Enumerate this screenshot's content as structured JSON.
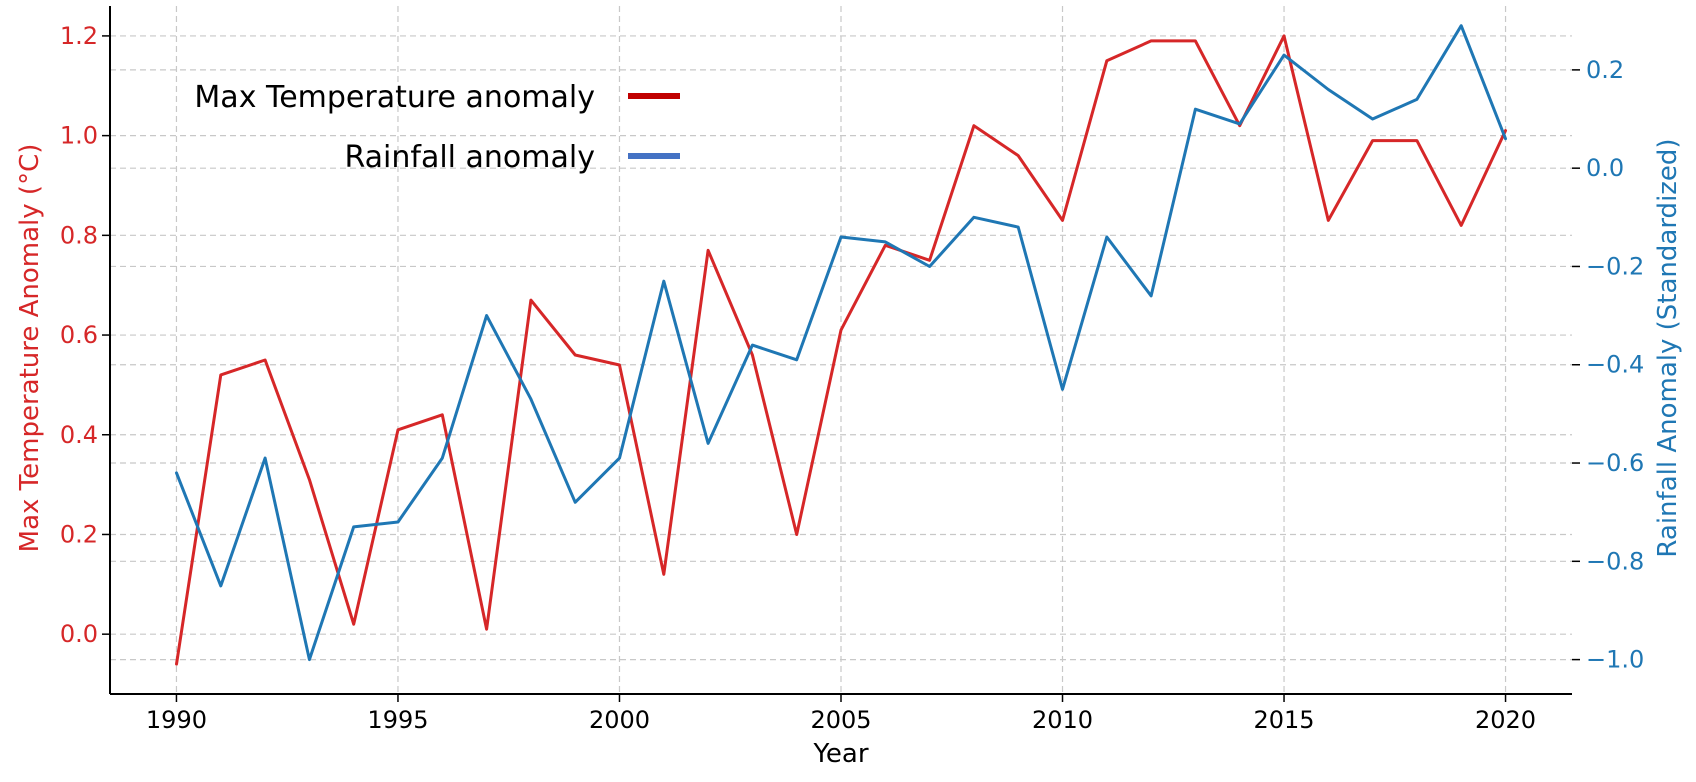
{
  "chart_data": {
    "type": "line",
    "xlabel": "Year",
    "ylabel_left": "Max Temperature Anomaly (°C)",
    "ylabel_right": "Rainfall Anomaly (Standardized)",
    "xlim": [
      1988.5,
      2021.5
    ],
    "ylim_left": [
      -0.12,
      1.26
    ],
    "ylim_right": [
      -1.07,
      0.33
    ],
    "x_ticks": [
      1990,
      1995,
      2000,
      2005,
      2010,
      2015,
      2020
    ],
    "x_tick_labels": [
      "1990",
      "1995",
      "2000",
      "2005",
      "2010",
      "2015",
      "2020"
    ],
    "y_left_ticks": [
      0.0,
      0.2,
      0.4,
      0.6,
      0.8,
      1.0,
      1.2
    ],
    "y_left_tick_labels": [
      "0.0",
      "0.2",
      "0.4",
      "0.6",
      "0.8",
      "1.0",
      "1.2"
    ],
    "y_right_ticks": [
      -1.0,
      -0.8,
      -0.6,
      -0.4,
      -0.2,
      0.0,
      0.2
    ],
    "y_right_tick_labels": [
      "−1.0",
      "−0.8",
      "−0.6",
      "−0.4",
      "−0.2",
      "0.0",
      "0.2"
    ],
    "grid": true,
    "legend_position": "top-left",
    "x": [
      1990,
      1991,
      1992,
      1993,
      1994,
      1995,
      1996,
      1997,
      1998,
      1999,
      2000,
      2001,
      2002,
      2003,
      2004,
      2005,
      2006,
      2007,
      2008,
      2009,
      2010,
      2011,
      2012,
      2013,
      2014,
      2015,
      2016,
      2017,
      2018,
      2019,
      2020
    ],
    "series": [
      {
        "name": "Max Temperature anomaly",
        "axis": "left",
        "color": "#d62728",
        "legend_color": "#c00000",
        "values": [
          -0.06,
          0.52,
          0.55,
          0.31,
          0.02,
          0.41,
          0.44,
          0.01,
          0.67,
          0.56,
          0.54,
          0.12,
          0.77,
          0.56,
          0.2,
          0.61,
          0.78,
          0.75,
          1.02,
          0.96,
          0.83,
          1.15,
          1.19,
          1.19,
          1.02,
          1.2,
          0.83,
          0.99,
          0.99,
          0.82,
          1.01
        ]
      },
      {
        "name": "Rainfall anomaly",
        "axis": "right",
        "color": "#1f77b4",
        "legend_color": "#4472c4",
        "values": [
          -0.62,
          -0.85,
          -0.59,
          -1.0,
          -0.73,
          -0.72,
          -0.59,
          -0.3,
          -0.47,
          -0.68,
          -0.59,
          -0.23,
          -0.56,
          -0.36,
          -0.39,
          -0.14,
          -0.15,
          -0.2,
          -0.1,
          -0.12,
          -0.45,
          -0.14,
          -0.26,
          0.12,
          0.09,
          0.23,
          0.16,
          0.1,
          0.14,
          0.29,
          0.06
        ]
      }
    ]
  }
}
